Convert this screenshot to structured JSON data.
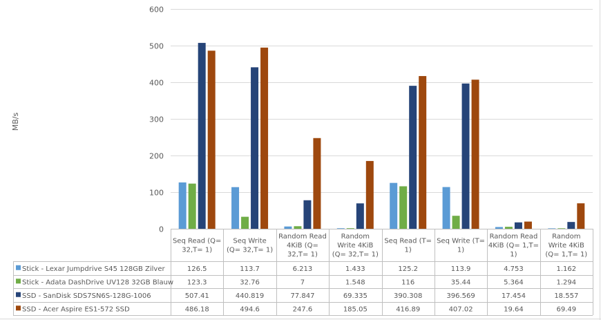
{
  "chart_data": {
    "type": "bar",
    "title": "",
    "xlabel": "",
    "ylabel": "MB/s",
    "ylim": [
      0,
      600
    ],
    "yticks": [
      0,
      100,
      200,
      300,
      400,
      500,
      600
    ],
    "grid": true,
    "legend": "data-table-below",
    "categories": [
      [
        "Seq Read (Q=",
        "32,T= 1)"
      ],
      [
        "Seq Write",
        "(Q= 32,T= 1)"
      ],
      [
        "Random Read",
        "4KiB (Q=",
        "32,T= 1)"
      ],
      [
        "Random",
        "Write 4KiB",
        "(Q= 32,T= 1)"
      ],
      [
        "Seq Read (T=",
        "1)"
      ],
      [
        "Seq Write (T=",
        "1)"
      ],
      [
        "Random Read",
        "4KiB (Q= 1,T=",
        "1)"
      ],
      [
        "Random",
        "Write 4KiB",
        "(Q= 1,T= 1)"
      ]
    ],
    "series": [
      {
        "name": "Stick - Lexar Jumpdrive S45 128GB Zilver",
        "color": "#5b9bd5",
        "values": [
          126.5,
          113.7,
          6.213,
          1.433,
          125.2,
          113.9,
          4.753,
          1.162
        ],
        "labels": [
          "126.5",
          "113.7",
          "6.213",
          "1.433",
          "125.2",
          "113.9",
          "4.753",
          "1.162"
        ]
      },
      {
        "name": "Stick - Adata DashDrive UV128 32GB Blauw",
        "color": "#70ad47",
        "values": [
          123.3,
          32.76,
          7,
          1.548,
          116,
          35.44,
          5.364,
          1.294
        ],
        "labels": [
          "123.3",
          "32.76",
          "7",
          "1.548",
          "116",
          "35.44",
          "5.364",
          "1.294"
        ]
      },
      {
        "name": "SSD - SanDisk SDS7SN6S-128G-1006",
        "color": "#264478",
        "values": [
          507.41,
          440.819,
          77.847,
          69.335,
          390.308,
          396.569,
          17.454,
          18.557
        ],
        "labels": [
          "507.41",
          "440.819",
          "77.847",
          "69.335",
          "390.308",
          "396.569",
          "17.454",
          "18.557"
        ]
      },
      {
        "name": "SSD - Acer Aspire ES1-572 SSD",
        "color": "#9e480e",
        "values": [
          486.18,
          494.6,
          247.6,
          185.05,
          416.89,
          407.02,
          19.64,
          69.49
        ],
        "labels": [
          "486.18",
          "494.6",
          "247.6",
          "185.05",
          "416.89",
          "407.02",
          "19.64",
          "69.49"
        ]
      }
    ]
  }
}
